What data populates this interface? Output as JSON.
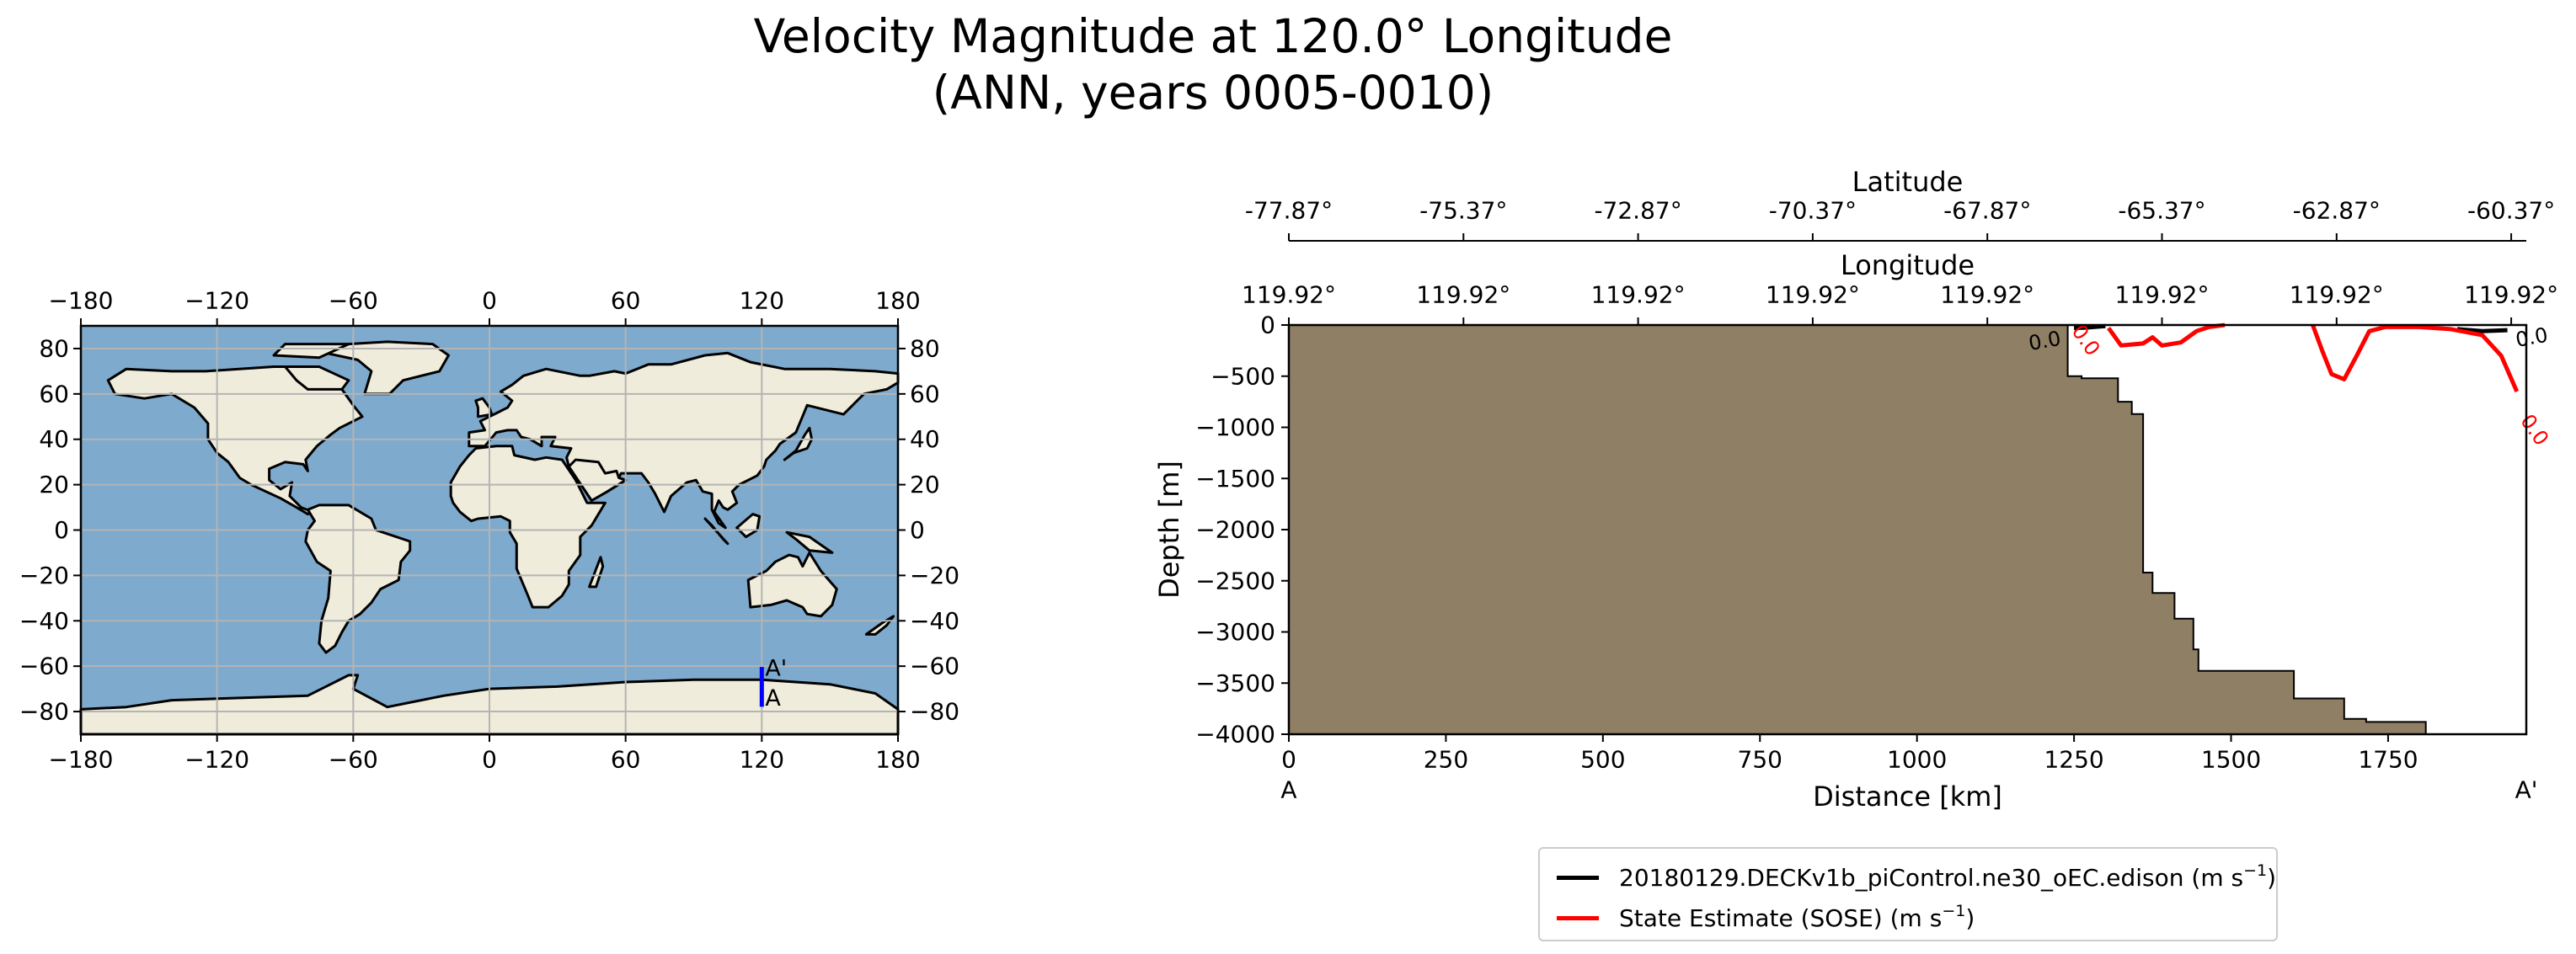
{
  "title": {
    "line1": "Velocity Magnitude at 120.0° Longitude",
    "line2": "(ANN, years 0005-0010)"
  },
  "colors": {
    "ocean": "#7eaacd",
    "land": "#efecdb",
    "grid": "#b4b4b4",
    "transect": "#0000ff",
    "bathymetry": "#8f7f65",
    "model_line": "#000000",
    "obs_line": "#ff0000"
  },
  "map": {
    "x_ticks": [
      "−180",
      "−120",
      "−60",
      "0",
      "60",
      "120",
      "180"
    ],
    "y_ticks": [
      "80",
      "60",
      "40",
      "20",
      "0",
      "−20",
      "−40",
      "−60",
      "−80"
    ],
    "transect": {
      "lon": 120.0,
      "lat_start": -77.87,
      "lat_end": -60.37,
      "start_label": "A",
      "end_label": "A'"
    }
  },
  "legend": {
    "model_label": "20180129.DECKv1b_piControl.ne30_oEC.edison (m s",
    "obs_label": "State Estimate (SOSE) (m s",
    "unit_sup": "−1",
    "close_paren": ")"
  },
  "chart_data": {
    "type": "area",
    "xlabel": "Distance [km]",
    "ylabel": "Depth [m]",
    "xlim": [
      0,
      1970
    ],
    "ylim": [
      -4000,
      0
    ],
    "x_ticks": [
      0,
      250,
      500,
      750,
      1000,
      1250,
      1500,
      1750
    ],
    "y_ticks": [
      0,
      -500,
      -1000,
      -1500,
      -2000,
      -2500,
      -3000,
      -3500,
      -4000
    ],
    "x_start_label": "A",
    "x_end_label": "A'",
    "latitude_axis": {
      "label": "Latitude",
      "ticks": [
        "-77.87°",
        "-75.37°",
        "-72.87°",
        "-70.37°",
        "-67.87°",
        "-65.37°",
        "-62.87°",
        "-60.37°"
      ],
      "distances": [
        0,
        278,
        556,
        834,
        1112,
        1390,
        1668,
        1946
      ]
    },
    "longitude_axis": {
      "label": "Longitude",
      "ticks": [
        "119.92°",
        "119.92°",
        "119.92°",
        "119.92°",
        "119.92°",
        "119.92°",
        "119.92°",
        "119.92°"
      ],
      "distances": [
        0,
        278,
        556,
        834,
        1112,
        1390,
        1668,
        1946
      ]
    },
    "bathymetry": {
      "distance": [
        0,
        1240,
        1240,
        1262,
        1262,
        1320,
        1320,
        1342,
        1342,
        1360,
        1360,
        1375,
        1375,
        1410,
        1410,
        1440,
        1440,
        1448,
        1448,
        1490,
        1490,
        1600,
        1600,
        1680,
        1680,
        1715,
        1715,
        1810,
        1810
      ],
      "depth": [
        0,
        0,
        -500,
        -500,
        -520,
        -520,
        -750,
        -750,
        -870,
        -870,
        -2420,
        -2420,
        -2620,
        -2620,
        -2870,
        -2870,
        -3170,
        -3170,
        -3380,
        -3380,
        -3380,
        -3380,
        -3650,
        -3650,
        -3850,
        -3850,
        -3880,
        -3880,
        -4000
      ]
    },
    "series": [
      {
        "name": "20180129.DECKv1b_piControl.ne30_oEC.edison (m s⁻¹)",
        "contours": [
          {
            "label": "0.0",
            "distance": [
              1250,
              1270,
              1300
            ],
            "depth": [
              -30,
              -25,
              -10
            ]
          },
          {
            "label": "0.0",
            "distance": [
              1860,
              1900,
              1940
            ],
            "depth": [
              -40,
              -60,
              -50
            ]
          }
        ]
      },
      {
        "name": "State Estimate (SOSE) (m s⁻¹)",
        "contours": [
          {
            "label": "0.0",
            "distance": [
              1305,
              1325,
              1360,
              1375,
              1390,
              1420,
              1445,
              1465,
              1490
            ],
            "depth": [
              -30,
              -200,
              -180,
              -120,
              -200,
              -170,
              -60,
              -20,
              0
            ]
          },
          {
            "label": "0.0",
            "distance": [
              1630,
              1645,
              1660,
              1680,
              1700,
              1720,
              1745,
              1800,
              1850,
              1900,
              1930,
              1955
            ],
            "depth": [
              0,
              -250,
              -480,
              -530,
              -300,
              -60,
              -20,
              -20,
              -40,
              -100,
              -300,
              -650
            ]
          }
        ]
      }
    ]
  }
}
